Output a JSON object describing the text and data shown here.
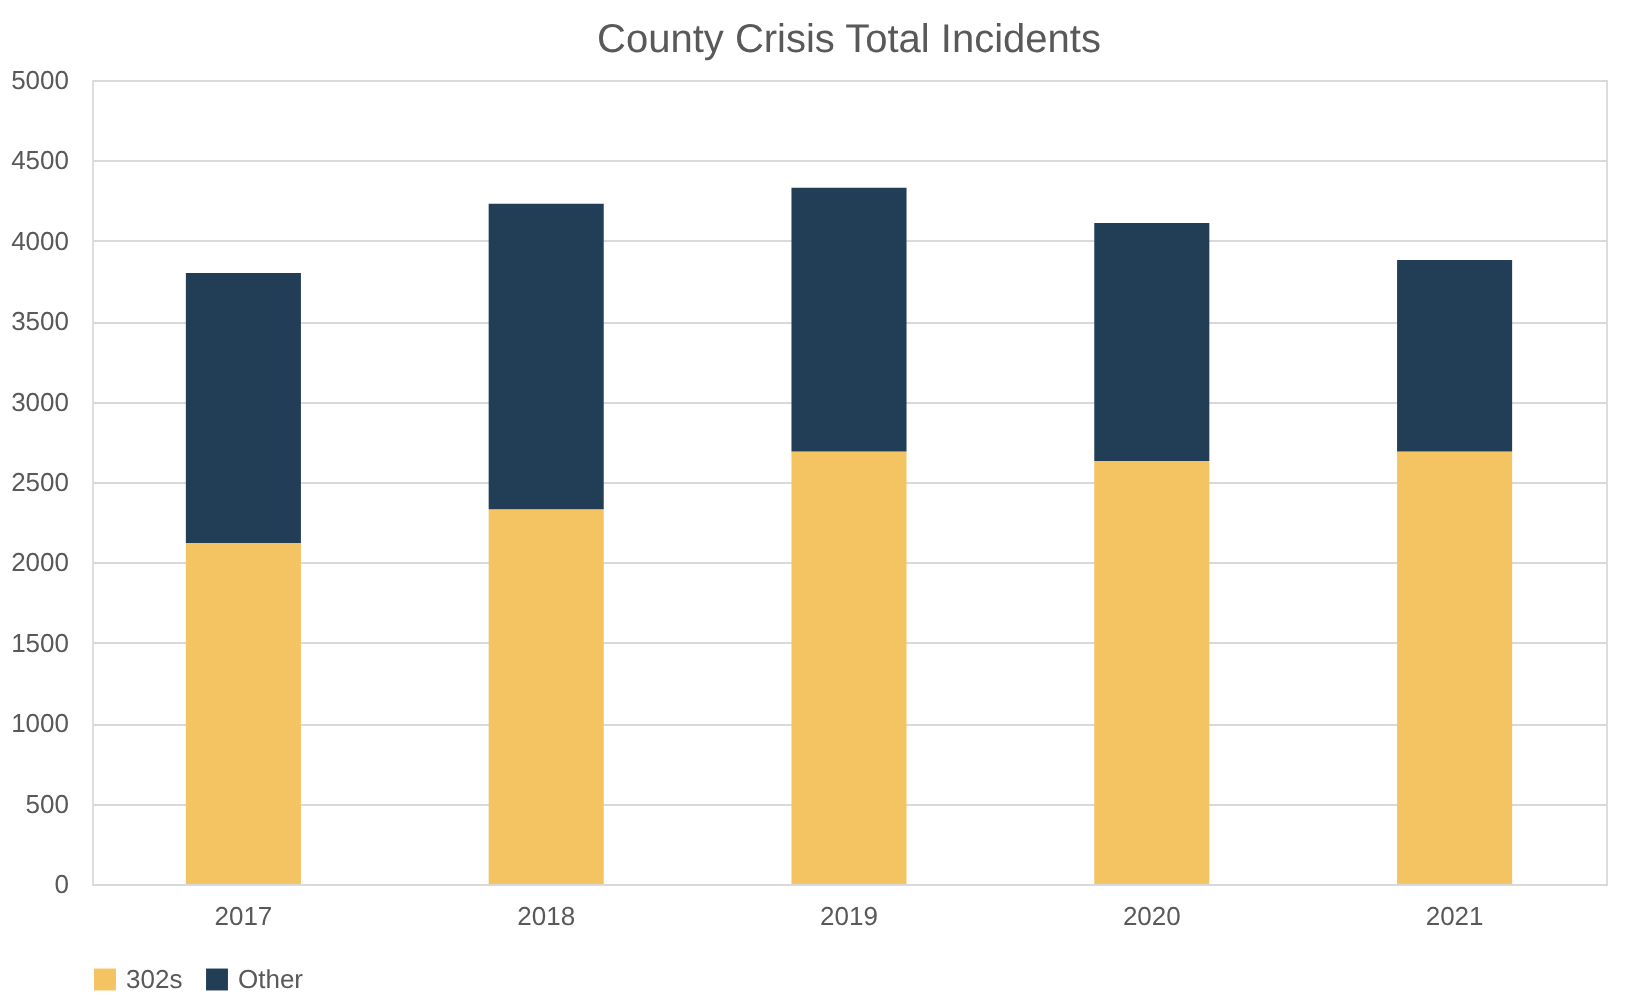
{
  "chart_data": {
    "type": "bar",
    "title": "County Crisis Total Incidents",
    "stacked": true,
    "categories": [
      "2017",
      "2018",
      "2019",
      "2020",
      "2021"
    ],
    "series": [
      {
        "name": "302s",
        "color": "#f4c462",
        "values": [
          2120,
          2330,
          2690,
          2630,
          2690
        ]
      },
      {
        "name": "Other",
        "color": "#223e57",
        "values": [
          1680,
          1900,
          1640,
          1480,
          1190
        ]
      }
    ],
    "ylim": [
      0,
      5000
    ],
    "yticks": [
      0,
      500,
      1000,
      1500,
      2000,
      2500,
      3000,
      3500,
      4000,
      4500,
      5000
    ],
    "grid": "y",
    "legend": "bottom"
  }
}
